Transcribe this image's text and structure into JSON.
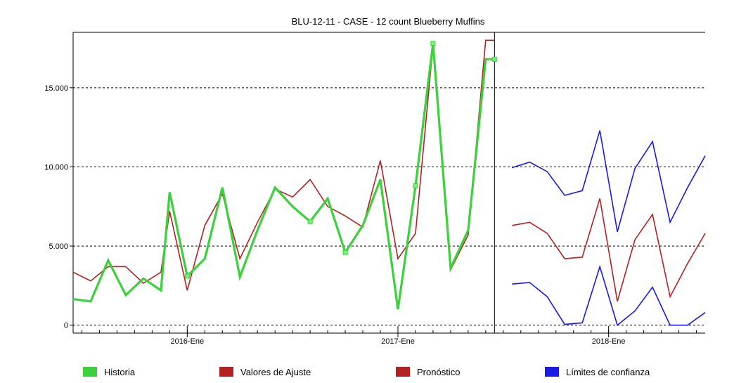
{
  "chart_data": {
    "type": "line",
    "title": "BLU-12-11 - CASE - 12 count Blueberry Muffins",
    "xlabel": "",
    "ylabel": "",
    "ylim": [
      -500,
      18500
    ],
    "yticks": [
      0,
      5000,
      10000,
      15000
    ],
    "ytick_labels": [
      "0",
      "5.000",
      "10.000",
      "15.000"
    ],
    "x_range_months": [
      -6.5,
      29.5
    ],
    "x_ticks": [
      {
        "label": "2016-Ene",
        "month": 0
      },
      {
        "label": "2017-Ene",
        "month": 12
      },
      {
        "label": "2018-Ene",
        "month": 24
      }
    ],
    "forecast_start_month": 17.5,
    "grid": "horizontal dashed",
    "legend_position": "bottom",
    "series": [
      {
        "name": "Historia",
        "color": "#3cd03c",
        "months": [
          -6.5,
          -5.5,
          -4.5,
          -3.5,
          -2.5,
          -1.5,
          -1,
          0,
          1,
          2,
          3,
          4,
          5,
          6,
          7,
          8,
          9,
          10,
          11,
          12,
          13,
          14,
          15,
          16,
          17,
          17.5
        ],
        "values": [
          1650,
          1500,
          4100,
          1900,
          2950,
          2200,
          8400,
          3100,
          4200,
          8700,
          3050,
          6000,
          8700,
          7500,
          6550,
          8000,
          4600,
          6300,
          9200,
          1000,
          8800,
          17800,
          3600,
          6000,
          16800,
          16800
        ]
      },
      {
        "name": "Valores de Ajuste",
        "color": "#b22222",
        "months": [
          -6.5,
          -5.5,
          -4.5,
          -3.5,
          -2.5,
          -1.5,
          -1,
          0,
          1,
          2,
          3,
          4,
          5,
          6,
          7,
          8,
          9,
          10,
          11,
          12,
          13,
          14,
          15,
          16,
          17,
          17.5
        ],
        "values": [
          3350,
          2800,
          3700,
          3700,
          2650,
          3350,
          7200,
          2200,
          6300,
          8300,
          4200,
          6500,
          8600,
          8100,
          9200,
          7500,
          6900,
          6200,
          10400,
          4200,
          5800,
          17700,
          3500,
          5700,
          18000,
          18000
        ]
      },
      {
        "name": "Pronóstico",
        "color": "#b22222",
        "months": [
          18.5,
          19.5,
          20.5,
          21.5,
          22.5,
          23.5,
          24.5,
          25.5,
          26.5,
          27.5,
          28.5,
          29.5
        ],
        "values": [
          6300,
          6500,
          5800,
          4200,
          4300,
          8000,
          1500,
          5400,
          7000,
          1800,
          3900,
          5800
        ]
      },
      {
        "name": "Límites de confianza",
        "color": "#1a1ae6",
        "bands": [
          {
            "bound": "upper",
            "months": [
              18.5,
              19.5,
              20.5,
              21.5,
              22.5,
              23.5,
              24.5,
              25.5,
              26.5,
              27.5,
              28.5,
              29.5
            ],
            "values": [
              9950,
              10300,
              9700,
              8200,
              8500,
              12300,
              5900,
              9900,
              11600,
              6500,
              8700,
              10700
            ]
          },
          {
            "bound": "lower",
            "months": [
              18.5,
              19.5,
              20.5,
              21.5,
              22.5,
              23.5,
              24.5,
              25.5,
              26.5,
              27.5,
              28.5,
              29.5
            ],
            "values": [
              2600,
              2700,
              1800,
              50,
              150,
              3700,
              0,
              900,
              2400,
              0,
              0,
              800
            ]
          }
        ]
      }
    ],
    "highlight_points_series": "Historia",
    "highlight_points_months": [
      0,
      7,
      9,
      13,
      14,
      17.5
    ],
    "legend": [
      {
        "label": "Historia",
        "color": "#3cd03c"
      },
      {
        "label": "Valores de Ajuste",
        "color": "#b22222"
      },
      {
        "label": "Pronóstico",
        "color": "#b22222"
      },
      {
        "label": "Límites de confianza",
        "color": "#1a1ae6"
      }
    ]
  }
}
